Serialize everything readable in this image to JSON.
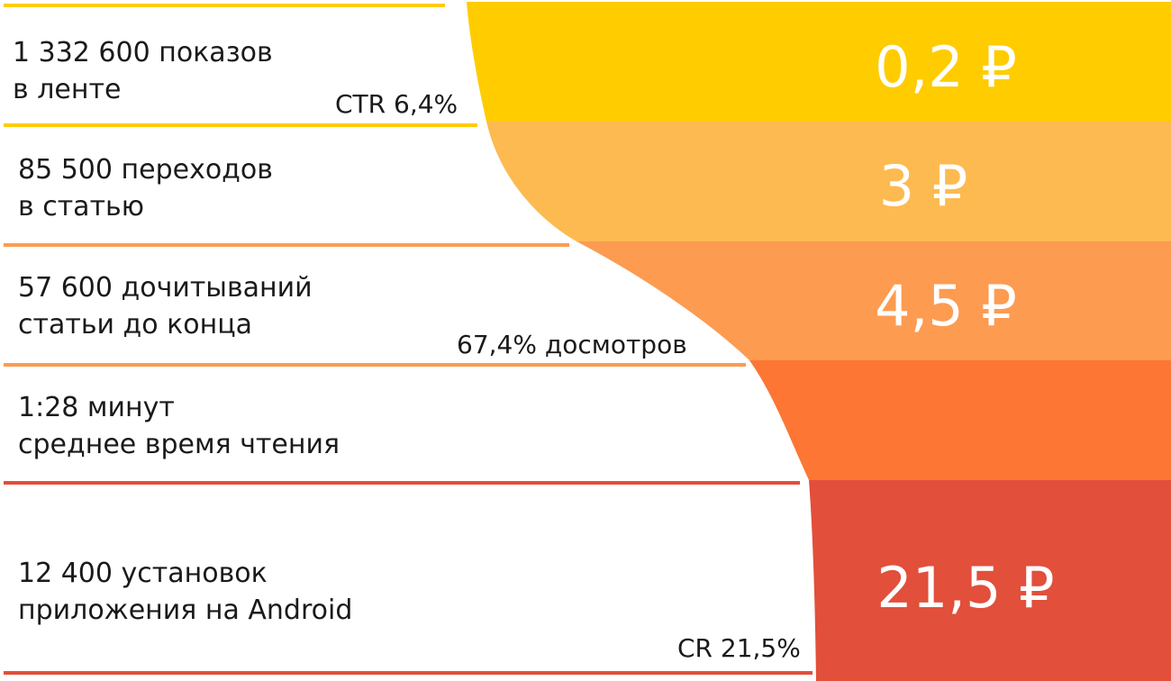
{
  "colors": {
    "stage1": "#FFCC00",
    "stage2": "#FDBA50",
    "stage3": "#FD9B50",
    "stage4": "#FD7634",
    "stage5": "#E24F3B"
  },
  "stages": [
    {
      "line1": "1 332 600 показов",
      "line2": "в ленте",
      "price": "0,2 ₽"
    },
    {
      "line1": "85 500 переходов",
      "line2": "в статью",
      "price": "3 ₽"
    },
    {
      "line1": "57 600 дочитываний",
      "line2": "статьи до конца",
      "price": "4,5 ₽"
    },
    {
      "line1": "1:28 минут",
      "line2": "среднее время чтения",
      "price": ""
    },
    {
      "line1": "12 400 установок",
      "line2": "приложения на Android",
      "price": "21,5 ₽"
    }
  ],
  "conversions": {
    "ctr": "CTR 6,4%",
    "read": "67,4% досмотров",
    "cr": "CR 21,5%"
  }
}
